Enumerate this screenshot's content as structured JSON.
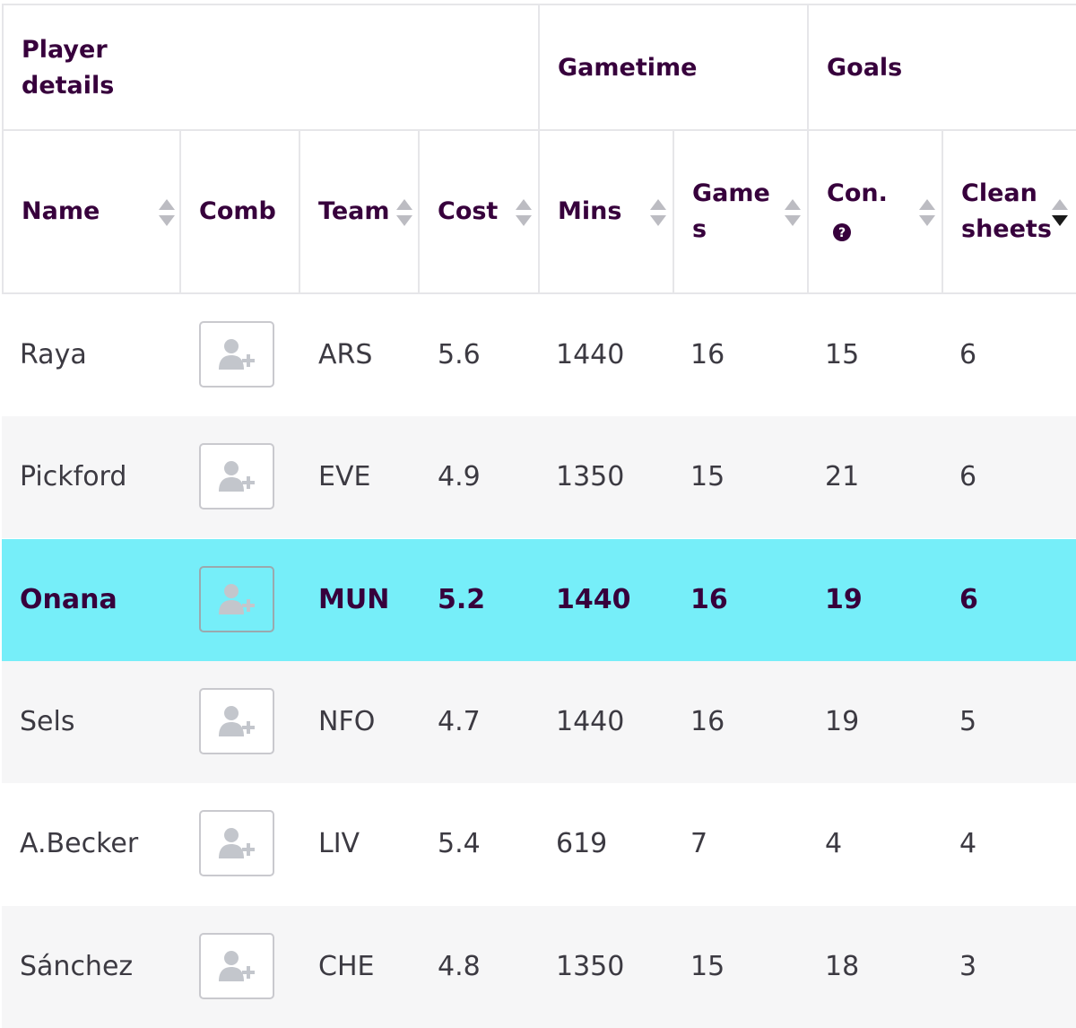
{
  "header_groups": {
    "player_details": "Player details",
    "gametime": "Gametime",
    "goals": "Goals"
  },
  "columns": {
    "name": "Name",
    "comb": "Comb",
    "team": "Team",
    "cost": "Cost",
    "mins": "Mins",
    "games": "Games",
    "conceded": "Con.",
    "clean_sheets": "Clean sheets"
  },
  "icons": {
    "sort": "sort-arrows-icon",
    "help": "question-circle-icon",
    "comb": "add-user-icon"
  },
  "colors": {
    "selected_row": "#76eef9",
    "header_text": "#37003c"
  },
  "rows": [
    {
      "name": "Raya",
      "team": "ARS",
      "cost": "5.6",
      "mins": "1440",
      "games": "16",
      "conceded": "15",
      "clean_sheets": "6"
    },
    {
      "name": "Pickford",
      "team": "EVE",
      "cost": "4.9",
      "mins": "1350",
      "games": "15",
      "conceded": "21",
      "clean_sheets": "6"
    },
    {
      "name": "Onana",
      "team": "MUN",
      "cost": "5.2",
      "mins": "1440",
      "games": "16",
      "conceded": "19",
      "clean_sheets": "6",
      "selected": true
    },
    {
      "name": "Sels",
      "team": "NFO",
      "cost": "4.7",
      "mins": "1440",
      "games": "16",
      "conceded": "19",
      "clean_sheets": "5"
    },
    {
      "name": "A.Becker",
      "team": "LIV",
      "cost": "5.4",
      "mins": "619",
      "games": "7",
      "conceded": "4",
      "clean_sheets": "4"
    },
    {
      "name": "Sánchez",
      "team": "CHE",
      "cost": "4.8",
      "mins": "1350",
      "games": "15",
      "conceded": "18",
      "clean_sheets": "3"
    }
  ]
}
